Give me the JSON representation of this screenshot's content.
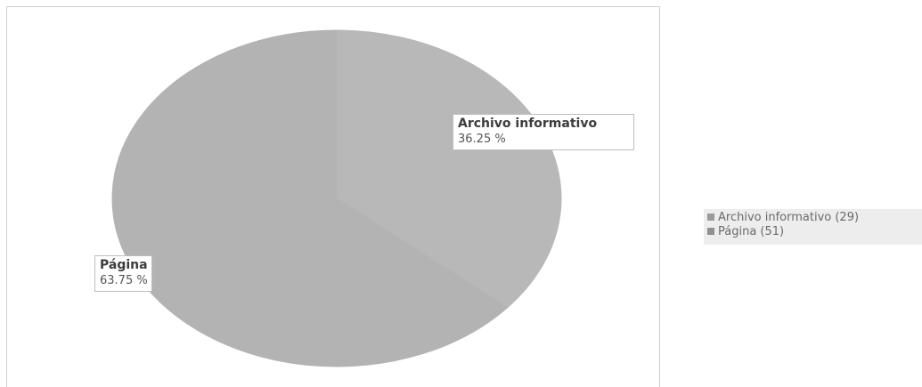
{
  "chart_data": {
    "type": "pie",
    "slices": [
      {
        "label": "Archivo informativo",
        "value": 29,
        "percent_label": "36.25 %",
        "legend_label": "Archivo informativo (29)",
        "color": "#b8b8b8"
      },
      {
        "label": "Página",
        "value": 51,
        "percent_label": "63.75 %",
        "legend_label": "Página (51)",
        "color": "#b3b3b3"
      }
    ],
    "legend_position": "right"
  }
}
